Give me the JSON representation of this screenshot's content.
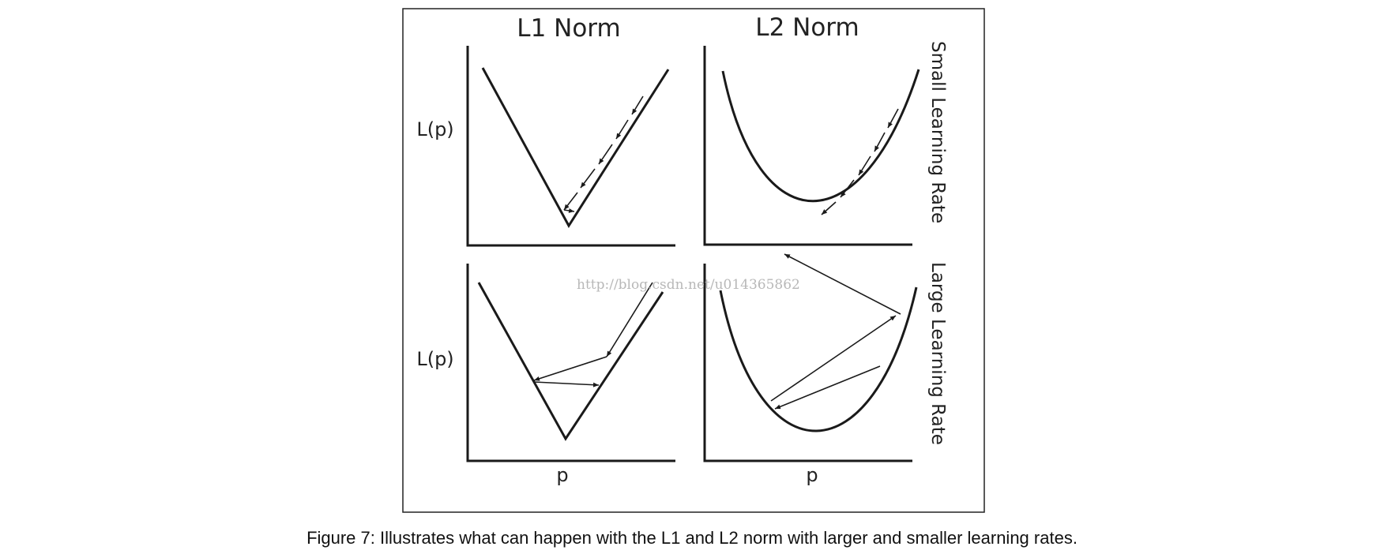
{
  "columns": [
    {
      "id": "l1",
      "title": "L1 Norm"
    },
    {
      "id": "l2",
      "title": "L2 Norm"
    }
  ],
  "rows": [
    {
      "id": "small",
      "label": "Small Learning Rate"
    },
    {
      "id": "large",
      "label": "Large Learning Rate"
    }
  ],
  "axes": {
    "ylabel": "L(p)",
    "xlabel": "p"
  },
  "watermark": "http://blog.csdn.net/u014365862",
  "caption": "Figure 7: Illustrates what can happen with the L1 and L2 norm with larger and smaller learning rates."
}
